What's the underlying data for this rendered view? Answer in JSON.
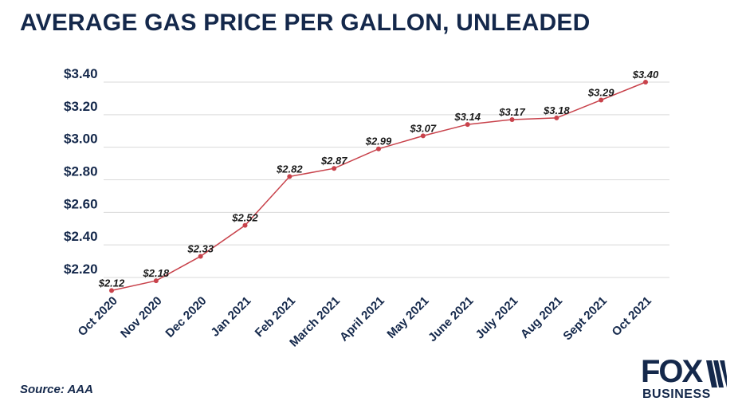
{
  "chart_data": {
    "type": "line",
    "title": "AVERAGE GAS PRICE PER GALLON, UNLEADED",
    "categories": [
      "Oct 2020",
      "Nov 2020",
      "Dec 2020",
      "Jan 2021",
      "Feb 2021",
      "March 2021",
      "April 2021",
      "May 2021",
      "June 2021",
      "July 2021",
      "Aug 2021",
      "Sept 2021",
      "Oct 2021"
    ],
    "values": [
      2.12,
      2.18,
      2.33,
      2.52,
      2.82,
      2.87,
      2.99,
      3.07,
      3.14,
      3.17,
      3.18,
      3.29,
      3.4
    ],
    "data_labels": [
      "$2.12",
      "$2.18",
      "$2.33",
      "$2.52",
      "$2.82",
      "$2.87",
      "$2.99",
      "$3.07",
      "$3.14",
      "$3.17",
      "$3.18",
      "$3.29",
      "$3.40"
    ],
    "y_ticks": [
      2.2,
      2.4,
      2.6,
      2.8,
      3.0,
      3.2,
      3.4
    ],
    "y_tick_labels": [
      "$2.20",
      "$2.40",
      "$2.60",
      "$2.80",
      "$3.00",
      "$3.20",
      "$3.40"
    ],
    "ylim": [
      2.12,
      3.4
    ],
    "grid": true,
    "line_color": "#c8424b",
    "text_color": "#14284b"
  },
  "source": "Source: AAA",
  "logo": {
    "line1": "FOX",
    "line2": "BUSINESS"
  }
}
